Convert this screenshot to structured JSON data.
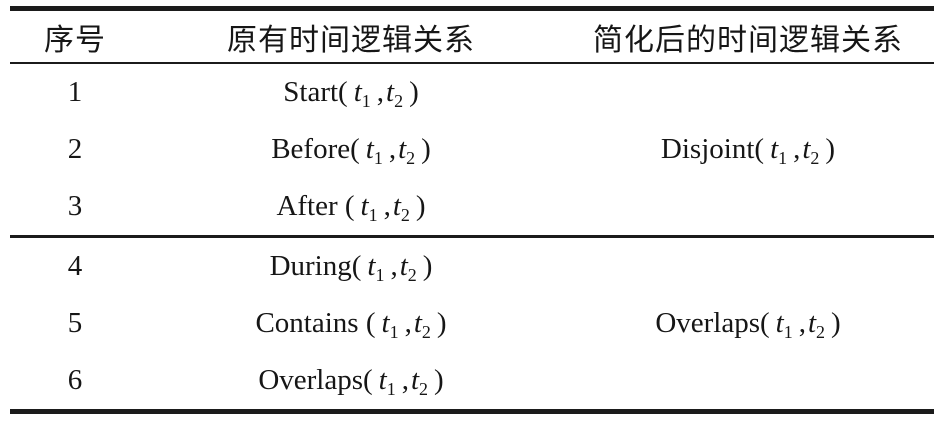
{
  "table": {
    "headers": [
      "序号",
      "原有时间逻辑关系",
      "简化后的时间逻辑关系"
    ],
    "syntax": {
      "open": "(",
      "comma": ",",
      "close": ")",
      "t": "t",
      "sub1": "1",
      "sub2": "2"
    },
    "groups": [
      {
        "rows": [
          {
            "num": "1",
            "fn": "Start"
          },
          {
            "num": "2",
            "fn": "Before"
          },
          {
            "num": "3",
            "fn": "After "
          }
        ],
        "simplified_fn": "Disjoint"
      },
      {
        "rows": [
          {
            "num": "4",
            "fn": "During"
          },
          {
            "num": "5",
            "fn": "Contains "
          },
          {
            "num": "6",
            "fn": "Overlaps"
          }
        ],
        "simplified_fn": "Overlaps"
      }
    ]
  }
}
